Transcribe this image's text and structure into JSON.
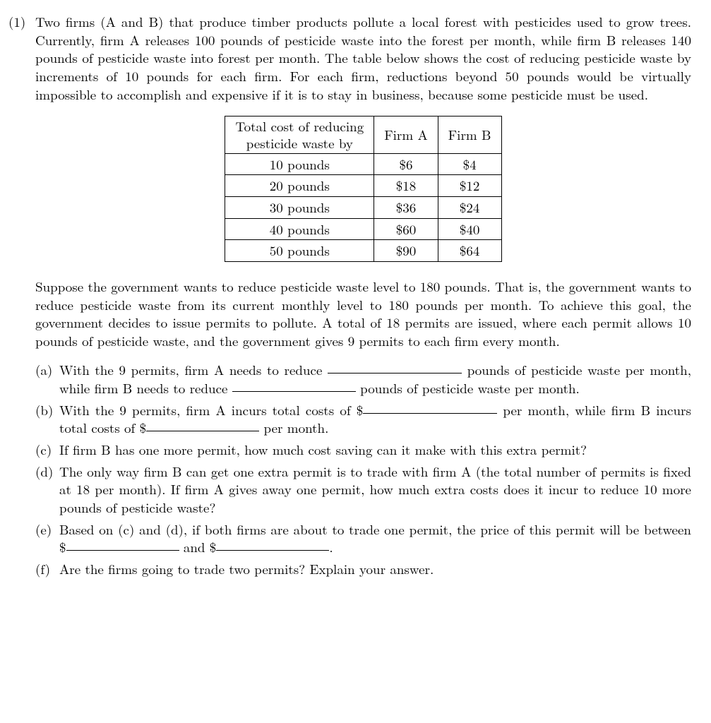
{
  "problem_number": "(1)",
  "intro": "Two firms (A and B) that produce timber products pollute a local forest with pesticides used to grow trees. Currently, firm A releases 100 pounds of pesticide waste into the forest per month, while firm B releases 140 pounds of pesticide waste into forest per month. The table below shows the cost of reducing pesticide waste by increments of 10 pounds for each firm. For each firm, reductions beyond 50 pounds would be virtually impossible to accomplish and expensive if it is to stay in business, because some pesticide must be used.",
  "table": {
    "header_col1_line1": "Total cost of reducing",
    "header_col1_line2": "pesticide waste by",
    "header_col2": "Firm A",
    "header_col3": "Firm B",
    "rows": [
      {
        "label": "10 pounds",
        "a": "$6",
        "b": "$4"
      },
      {
        "label": "20 pounds",
        "a": "$18",
        "b": "$12"
      },
      {
        "label": "30 pounds",
        "a": "$36",
        "b": "$24"
      },
      {
        "label": "40 pounds",
        "a": "$60",
        "b": "$40"
      },
      {
        "label": "50 pounds",
        "a": "$90",
        "b": "$64"
      }
    ]
  },
  "middle_para": "Suppose the government wants to reduce pesticide waste level to 180 pounds. That is, the government wants to reduce pesticide waste from its current monthly level to 180 pounds per month. To achieve this goal, the government decides to issue permits to pollute. A total of 18 permits are issued, where each permit allows 10 pounds of pesticide waste, and the government gives 9 permits to each firm every month.",
  "subparts": {
    "a": {
      "label": "(a)",
      "t1": "With the 9 permits, firm A needs to reduce ",
      "t2": " pounds of pesticide waste per month, while firm B needs to reduce ",
      "t3": " pounds of pesticide waste per month."
    },
    "b": {
      "label": "(b)",
      "t1": "With the 9 permits, firm A incurs total costs of $",
      "t2": " per month, while firm B incurs total costs of $",
      "t3": " per month."
    },
    "c": {
      "label": "(c)",
      "text": "If firm B has one more permit, how much cost saving can it make with this extra permit?"
    },
    "d": {
      "label": "(d)",
      "text": "The only way firm B can get one extra permit is to trade with firm A (the total number of permits is fixed at 18 per month). If firm A gives away one permit, how much extra costs does it incur to reduce 10 more pounds of pesticide waste?"
    },
    "e": {
      "label": "(e)",
      "t1": "Based on (c) and (d), if both firms are about to trade one permit, the price of this permit will be between $",
      "t2": " and $",
      "t3": "."
    },
    "f": {
      "label": "(f)",
      "text": "Are the firms going to trade two permits? Explain your answer."
    }
  }
}
